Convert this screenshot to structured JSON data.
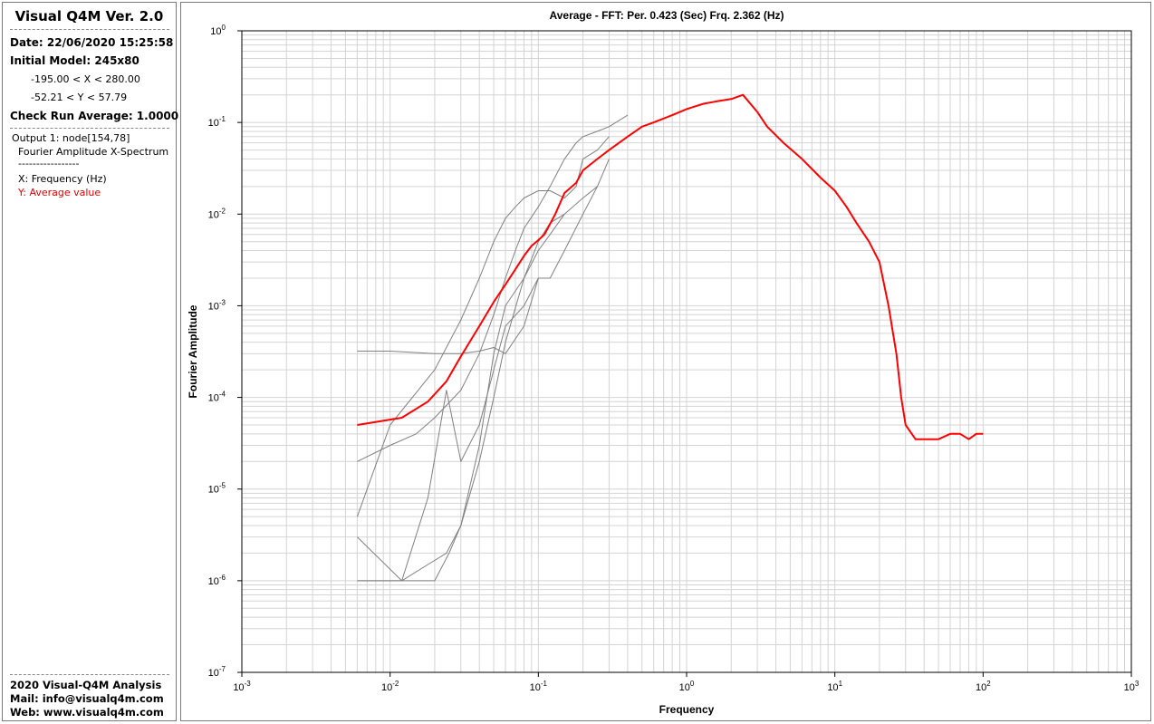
{
  "sidebar": {
    "title": "Visual Q4M Ver. 2.0",
    "date": "Date: 22/06/2020 15:25:58",
    "initial_model": "Initial Model: 245x80",
    "x_range": "-195.00 < X < 280.00",
    "y_range": "-52.21 < Y < 57.79",
    "check_run": "Check Run Average: 1.0000",
    "output": "Output 1: node[154,78]",
    "spectrum": "Fourier Amplitude X-Spectrum",
    "separator": "-----------------",
    "x_legend": "X: Frequency (Hz)",
    "y_legend": "Y: Average value",
    "footer_title": "2020 Visual-Q4M Analysis",
    "footer_mail": "Mail: info@visualq4m.com",
    "footer_web": "Web: www.visualq4m.com"
  },
  "colors": {
    "average": "#ff0000",
    "individual": "#808080",
    "grid": "#d4d4d4",
    "legend_y": "#e00000"
  },
  "chart_data": {
    "type": "line",
    "title": "Average - FFT: Per. 0.423 (Sec) Frq. 2.362 (Hz)",
    "xlabel": "Frequency",
    "ylabel": "Fourier Amplitude",
    "x_scale": "log",
    "y_scale": "log",
    "xlim": [
      0.001,
      1000
    ],
    "ylim": [
      1e-07,
      1
    ],
    "x_ticks": [
      {
        "base": "10",
        "exp": "-3"
      },
      {
        "base": "10",
        "exp": "-2"
      },
      {
        "base": "10",
        "exp": "-1"
      },
      {
        "base": "10",
        "exp": "0"
      },
      {
        "base": "10",
        "exp": "1"
      },
      {
        "base": "10",
        "exp": "2"
      },
      {
        "base": "10",
        "exp": "3"
      }
    ],
    "y_ticks": [
      {
        "base": "10",
        "exp": "-7"
      },
      {
        "base": "10",
        "exp": "-6"
      },
      {
        "base": "10",
        "exp": "-5"
      },
      {
        "base": "10",
        "exp": "-4"
      },
      {
        "base": "10",
        "exp": "-3"
      },
      {
        "base": "10",
        "exp": "-2"
      },
      {
        "base": "10",
        "exp": "-1"
      },
      {
        "base": "10",
        "exp": "0"
      }
    ],
    "grid": true,
    "series": [
      {
        "color": "#ff0000",
        "x": [
          0.006,
          0.012,
          0.018,
          0.024,
          0.03,
          0.04,
          0.05,
          0.06,
          0.07,
          0.08,
          0.09,
          0.1,
          0.11,
          0.13,
          0.15,
          0.18,
          0.2,
          0.25,
          0.3,
          0.4,
          0.5,
          0.6,
          0.8,
          1.0,
          1.3,
          1.6,
          2.0,
          2.4,
          3.0,
          3.5,
          4.5,
          6.0,
          8.0,
          10,
          12,
          14,
          17,
          20,
          23,
          26,
          28,
          30,
          35,
          40,
          50,
          60,
          70,
          80,
          90,
          100
        ],
        "y": [
          5e-05,
          6e-05,
          9e-05,
          0.00015,
          0.00028,
          0.0006,
          0.0011,
          0.0017,
          0.0025,
          0.0035,
          0.0045,
          0.0052,
          0.006,
          0.01,
          0.017,
          0.022,
          0.03,
          0.04,
          0.05,
          0.07,
          0.09,
          0.1,
          0.12,
          0.14,
          0.16,
          0.17,
          0.18,
          0.2,
          0.13,
          0.09,
          0.06,
          0.04,
          0.025,
          0.018,
          0.012,
          0.008,
          0.005,
          0.003,
          0.001,
          0.0003,
          0.0001,
          5e-05,
          3.5e-05,
          3.5e-05,
          3.5e-05,
          4e-05,
          4e-05,
          3.5e-05,
          4e-05,
          4e-05
        ]
      },
      {
        "color": "#808080",
        "x": [
          0.006,
          0.01,
          0.015,
          0.02,
          0.03,
          0.04,
          0.05,
          0.06,
          0.07,
          0.08,
          0.1,
          0.12,
          0.15,
          0.18,
          0.2,
          0.25,
          0.3,
          0.4
        ],
        "y": [
          2e-05,
          3e-05,
          4e-05,
          6e-05,
          0.00012,
          0.0003,
          0.0008,
          0.002,
          0.004,
          0.007,
          0.012,
          0.02,
          0.04,
          0.06,
          0.07,
          0.08,
          0.09,
          0.12
        ]
      },
      {
        "color": "#808080",
        "x": [
          0.006,
          0.01,
          0.02,
          0.03,
          0.04,
          0.05,
          0.06,
          0.07,
          0.08,
          0.1,
          0.12,
          0.15,
          0.18,
          0.2,
          0.25,
          0.3
        ],
        "y": [
          5e-06,
          5e-05,
          0.0002,
          0.0007,
          0.002,
          0.005,
          0.009,
          0.012,
          0.015,
          0.018,
          0.018,
          0.015,
          0.02,
          0.04,
          0.05,
          0.07
        ]
      },
      {
        "color": "#808080",
        "x": [
          0.006,
          0.012,
          0.018,
          0.024,
          0.03,
          0.04,
          0.05,
          0.06,
          0.08,
          0.1,
          0.12,
          0.15,
          0.2,
          0.25,
          0.3
        ],
        "y": [
          1e-06,
          1e-06,
          8e-06,
          0.00012,
          2e-05,
          5e-05,
          0.0002,
          0.0006,
          0.001,
          0.002,
          0.002,
          0.004,
          0.01,
          0.02,
          0.04
        ]
      },
      {
        "color": "#808080",
        "x": [
          0.006,
          0.01,
          0.015,
          0.02,
          0.025,
          0.03,
          0.04,
          0.05,
          0.06,
          0.08,
          0.1,
          0.12,
          0.15,
          0.2,
          0.25
        ],
        "y": [
          1e-06,
          1e-06,
          1e-06,
          1e-06,
          2e-06,
          4e-06,
          3e-05,
          0.0003,
          0.001,
          0.002,
          0.005,
          0.008,
          0.01,
          0.015,
          0.02
        ]
      },
      {
        "color": "#808080",
        "x": [
          0.006,
          0.012,
          0.018,
          0.024,
          0.03,
          0.04,
          0.05,
          0.06,
          0.08,
          0.1,
          0.12,
          0.15
        ],
        "y": [
          3e-06,
          1e-06,
          1.5e-06,
          2e-06,
          4e-06,
          2e-05,
          0.0001,
          0.0004,
          0.002,
          0.004,
          0.006,
          0.01
        ]
      },
      {
        "color": "#808080",
        "x": [
          0.006,
          0.01,
          0.02,
          0.03,
          0.04,
          0.05,
          0.06,
          0.08,
          0.1
        ],
        "y": [
          0.00032,
          0.00032,
          0.0003,
          0.0003,
          0.00032,
          0.00035,
          0.0003,
          0.0006,
          0.002
        ]
      }
    ]
  }
}
